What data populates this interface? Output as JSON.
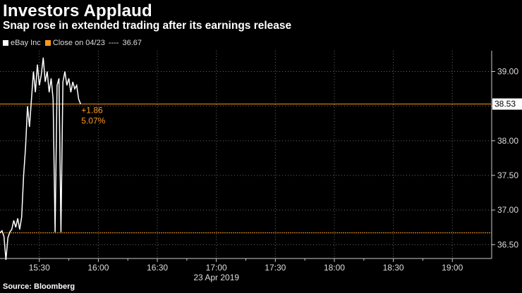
{
  "header": {
    "title": "Investors Applaud",
    "subtitle": "Snap rose in extended trading after its earnings release"
  },
  "legend": {
    "series_label": "eBay Inc",
    "close_label": "Close on 04/23",
    "close_dashes": "----",
    "close_value": "36.67"
  },
  "footer": {
    "source": "Source: Bloomberg"
  },
  "colors": {
    "background": "#000000",
    "line": "#ffffff",
    "close_line": "#ff9a1f",
    "grid": "#666666"
  },
  "chart_data": {
    "type": "line",
    "x_label": "23 Apr 2019",
    "x_ticks": [
      "15:30",
      "16:00",
      "16:30",
      "17:00",
      "17:30",
      "18:00",
      "18:30",
      "19:00"
    ],
    "y_ticks": [
      "36.50",
      "37.00",
      "37.50",
      "38.00",
      "38.50",
      "39.00"
    ],
    "ylim": [
      36.3,
      39.3
    ],
    "xlim": [
      "15:10",
      "19:20"
    ],
    "last_value_label": "38.53",
    "close_value": 36.67,
    "change_annotation": "+1.86",
    "change_pct_annotation": "5.07%",
    "grid": true,
    "series": [
      {
        "name": "eBay Inc",
        "points": [
          [
            "15:10",
            36.67
          ],
          [
            "15:11",
            36.7
          ],
          [
            "15:12",
            36.62
          ],
          [
            "15:13",
            36.28
          ],
          [
            "15:14",
            36.6
          ],
          [
            "15:15",
            36.68
          ],
          [
            "15:16",
            36.72
          ],
          [
            "15:17",
            36.85
          ],
          [
            "15:18",
            36.75
          ],
          [
            "15:19",
            36.88
          ],
          [
            "15:20",
            36.72
          ],
          [
            "15:21",
            36.9
          ],
          [
            "15:22",
            37.5
          ],
          [
            "15:23",
            37.9
          ],
          [
            "15:24",
            38.5
          ],
          [
            "15:25",
            38.2
          ],
          [
            "15:26",
            38.6
          ],
          [
            "15:27",
            39.0
          ],
          [
            "15:28",
            38.7
          ],
          [
            "15:29",
            39.1
          ],
          [
            "15:30",
            38.8
          ],
          [
            "15:31",
            38.95
          ],
          [
            "15:32",
            39.2
          ],
          [
            "15:33",
            38.85
          ],
          [
            "15:34",
            39.0
          ],
          [
            "15:35",
            38.7
          ],
          [
            "15:36",
            38.9
          ],
          [
            "15:37",
            38.6
          ],
          [
            "15:38",
            36.68
          ],
          [
            "15:39",
            38.8
          ],
          [
            "15:40",
            38.9
          ],
          [
            "15:41",
            36.68
          ],
          [
            "15:42",
            38.85
          ],
          [
            "15:43",
            39.0
          ],
          [
            "15:44",
            38.8
          ],
          [
            "15:45",
            38.9
          ],
          [
            "15:46",
            38.7
          ],
          [
            "15:47",
            38.85
          ],
          [
            "15:48",
            38.75
          ],
          [
            "15:49",
            38.8
          ],
          [
            "15:50",
            38.6
          ],
          [
            "15:51",
            38.53
          ]
        ]
      }
    ]
  }
}
